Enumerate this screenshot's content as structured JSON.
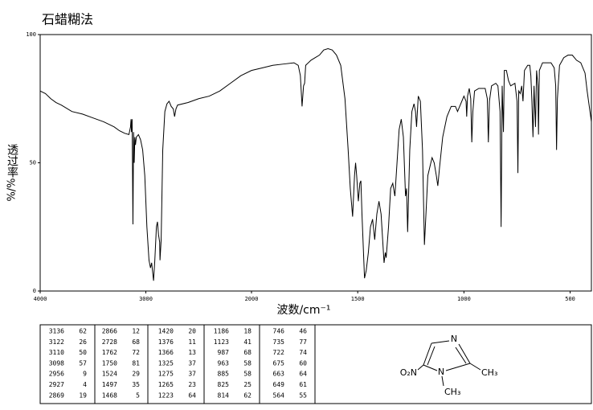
{
  "chart_data": {
    "type": "line",
    "title": "石蜡糊法",
    "x_label": "波数/cm⁻¹",
    "y_label": "透过率",
    "y_unit": "%/%",
    "xlim": [
      4000,
      400
    ],
    "ylim": [
      0,
      100
    ],
    "x_scale_break": 2000,
    "xticks": [
      4000,
      3000,
      2000,
      1500,
      1000,
      500
    ],
    "yticks": [
      0,
      50,
      100
    ],
    "color": "#000000",
    "x": [
      4000,
      3950,
      3900,
      3850,
      3800,
      3700,
      3600,
      3500,
      3400,
      3300,
      3250,
      3200,
      3160,
      3145,
      3140,
      3136,
      3130,
      3122,
      3116,
      3110,
      3104,
      3098,
      3090,
      3070,
      3050,
      3030,
      3010,
      2990,
      2970,
      2956,
      2945,
      2927,
      2915,
      2900,
      2890,
      2880,
      2869,
      2866,
      2855,
      2840,
      2820,
      2800,
      2780,
      2760,
      2740,
      2728,
      2715,
      2700,
      2600,
      2500,
      2400,
      2300,
      2200,
      2100,
      2000,
      1950,
      1900,
      1850,
      1800,
      1780,
      1770,
      1762,
      1755,
      1750,
      1745,
      1720,
      1700,
      1680,
      1660,
      1640,
      1620,
      1600,
      1580,
      1560,
      1545,
      1535,
      1524,
      1515,
      1510,
      1505,
      1497,
      1490,
      1485,
      1480,
      1468,
      1460,
      1450,
      1440,
      1430,
      1420,
      1410,
      1400,
      1390,
      1376,
      1370,
      1366,
      1355,
      1345,
      1335,
      1325,
      1315,
      1305,
      1295,
      1285,
      1275,
      1270,
      1265,
      1255,
      1245,
      1235,
      1228,
      1223,
      1215,
      1205,
      1195,
      1186,
      1180,
      1170,
      1150,
      1140,
      1130,
      1123,
      1115,
      1100,
      1080,
      1060,
      1040,
      1030,
      1020,
      1000,
      990,
      987,
      983,
      975,
      968,
      963,
      958,
      950,
      930,
      900,
      890,
      885,
      880,
      870,
      850,
      840,
      830,
      825,
      820,
      814,
      810,
      800,
      790,
      780,
      760,
      750,
      746,
      742,
      735,
      728,
      722,
      715,
      700,
      690,
      685,
      680,
      675,
      670,
      663,
      658,
      652,
      649,
      645,
      630,
      610,
      590,
      575,
      568,
      564,
      560,
      550,
      530,
      510,
      490,
      470,
      450,
      430,
      420,
      410,
      400
    ],
    "values": [
      78,
      77,
      75,
      73.5,
      72.5,
      70,
      69,
      67.5,
      66,
      64,
      62.5,
      61.5,
      61,
      64,
      67,
      62,
      67,
      26,
      62,
      50,
      60,
      57,
      60,
      61,
      59,
      55,
      45,
      25,
      12,
      9,
      11,
      4,
      12,
      25,
      27,
      22,
      19,
      12,
      20,
      55,
      70,
      73,
      74,
      72,
      71,
      68,
      71,
      72.5,
      73.5,
      75,
      76,
      78,
      81,
      84,
      86,
      87,
      88,
      88.5,
      89,
      88,
      84,
      72,
      80,
      81,
      88,
      90,
      91,
      92,
      94,
      94.5,
      94,
      92,
      88,
      75,
      55,
      40,
      29,
      45,
      50,
      45,
      35,
      42,
      43,
      30,
      5,
      8,
      15,
      25,
      28,
      20,
      30,
      35,
      30,
      11,
      15,
      13,
      25,
      40,
      42,
      37,
      50,
      63,
      67,
      60,
      37,
      40,
      23,
      55,
      70,
      73,
      70,
      64,
      76,
      74,
      55,
      18,
      28,
      45,
      52,
      50,
      45,
      41,
      48,
      60,
      68,
      72,
      72,
      70,
      72,
      76,
      74,
      68,
      76,
      79,
      75,
      58,
      70,
      78,
      79,
      79,
      75,
      58,
      74,
      80,
      81,
      80,
      70,
      25,
      80,
      62,
      86,
      86,
      82,
      80,
      81,
      74,
      46,
      78,
      77,
      80,
      74,
      86,
      88,
      88,
      84,
      74,
      60,
      80,
      64,
      86,
      80,
      61,
      86,
      89,
      89,
      89,
      87,
      80,
      55,
      75,
      88,
      91,
      92,
      92,
      90,
      89,
      85,
      78,
      72,
      66
    ]
  },
  "peak_table": [
    [
      [
        3136,
        62
      ],
      [
        3122,
        26
      ],
      [
        3110,
        50
      ],
      [
        3098,
        57
      ],
      [
        2956,
        9
      ],
      [
        2927,
        4
      ],
      [
        2869,
        19
      ]
    ],
    [
      [
        2866,
        12
      ],
      [
        2728,
        68
      ],
      [
        1762,
        72
      ],
      [
        1750,
        81
      ],
      [
        1524,
        29
      ],
      [
        1497,
        35
      ],
      [
        1468,
        5
      ]
    ],
    [
      [
        1420,
        20
      ],
      [
        1376,
        11
      ],
      [
        1366,
        13
      ],
      [
        1325,
        37
      ],
      [
        1275,
        37
      ],
      [
        1265,
        23
      ],
      [
        1223,
        64
      ]
    ],
    [
      [
        1186,
        18
      ],
      [
        1123,
        41
      ],
      [
        987,
        68
      ],
      [
        963,
        58
      ],
      [
        885,
        58
      ],
      [
        825,
        25
      ],
      [
        814,
        62
      ]
    ],
    [
      [
        746,
        46
      ],
      [
        735,
        77
      ],
      [
        722,
        74
      ],
      [
        675,
        60
      ],
      [
        663,
        64
      ],
      [
        649,
        61
      ],
      [
        564,
        55
      ]
    ]
  ],
  "structure": {
    "atoms": [
      "N",
      "O₂N",
      "N",
      "CH₃",
      "CH₃"
    ]
  }
}
